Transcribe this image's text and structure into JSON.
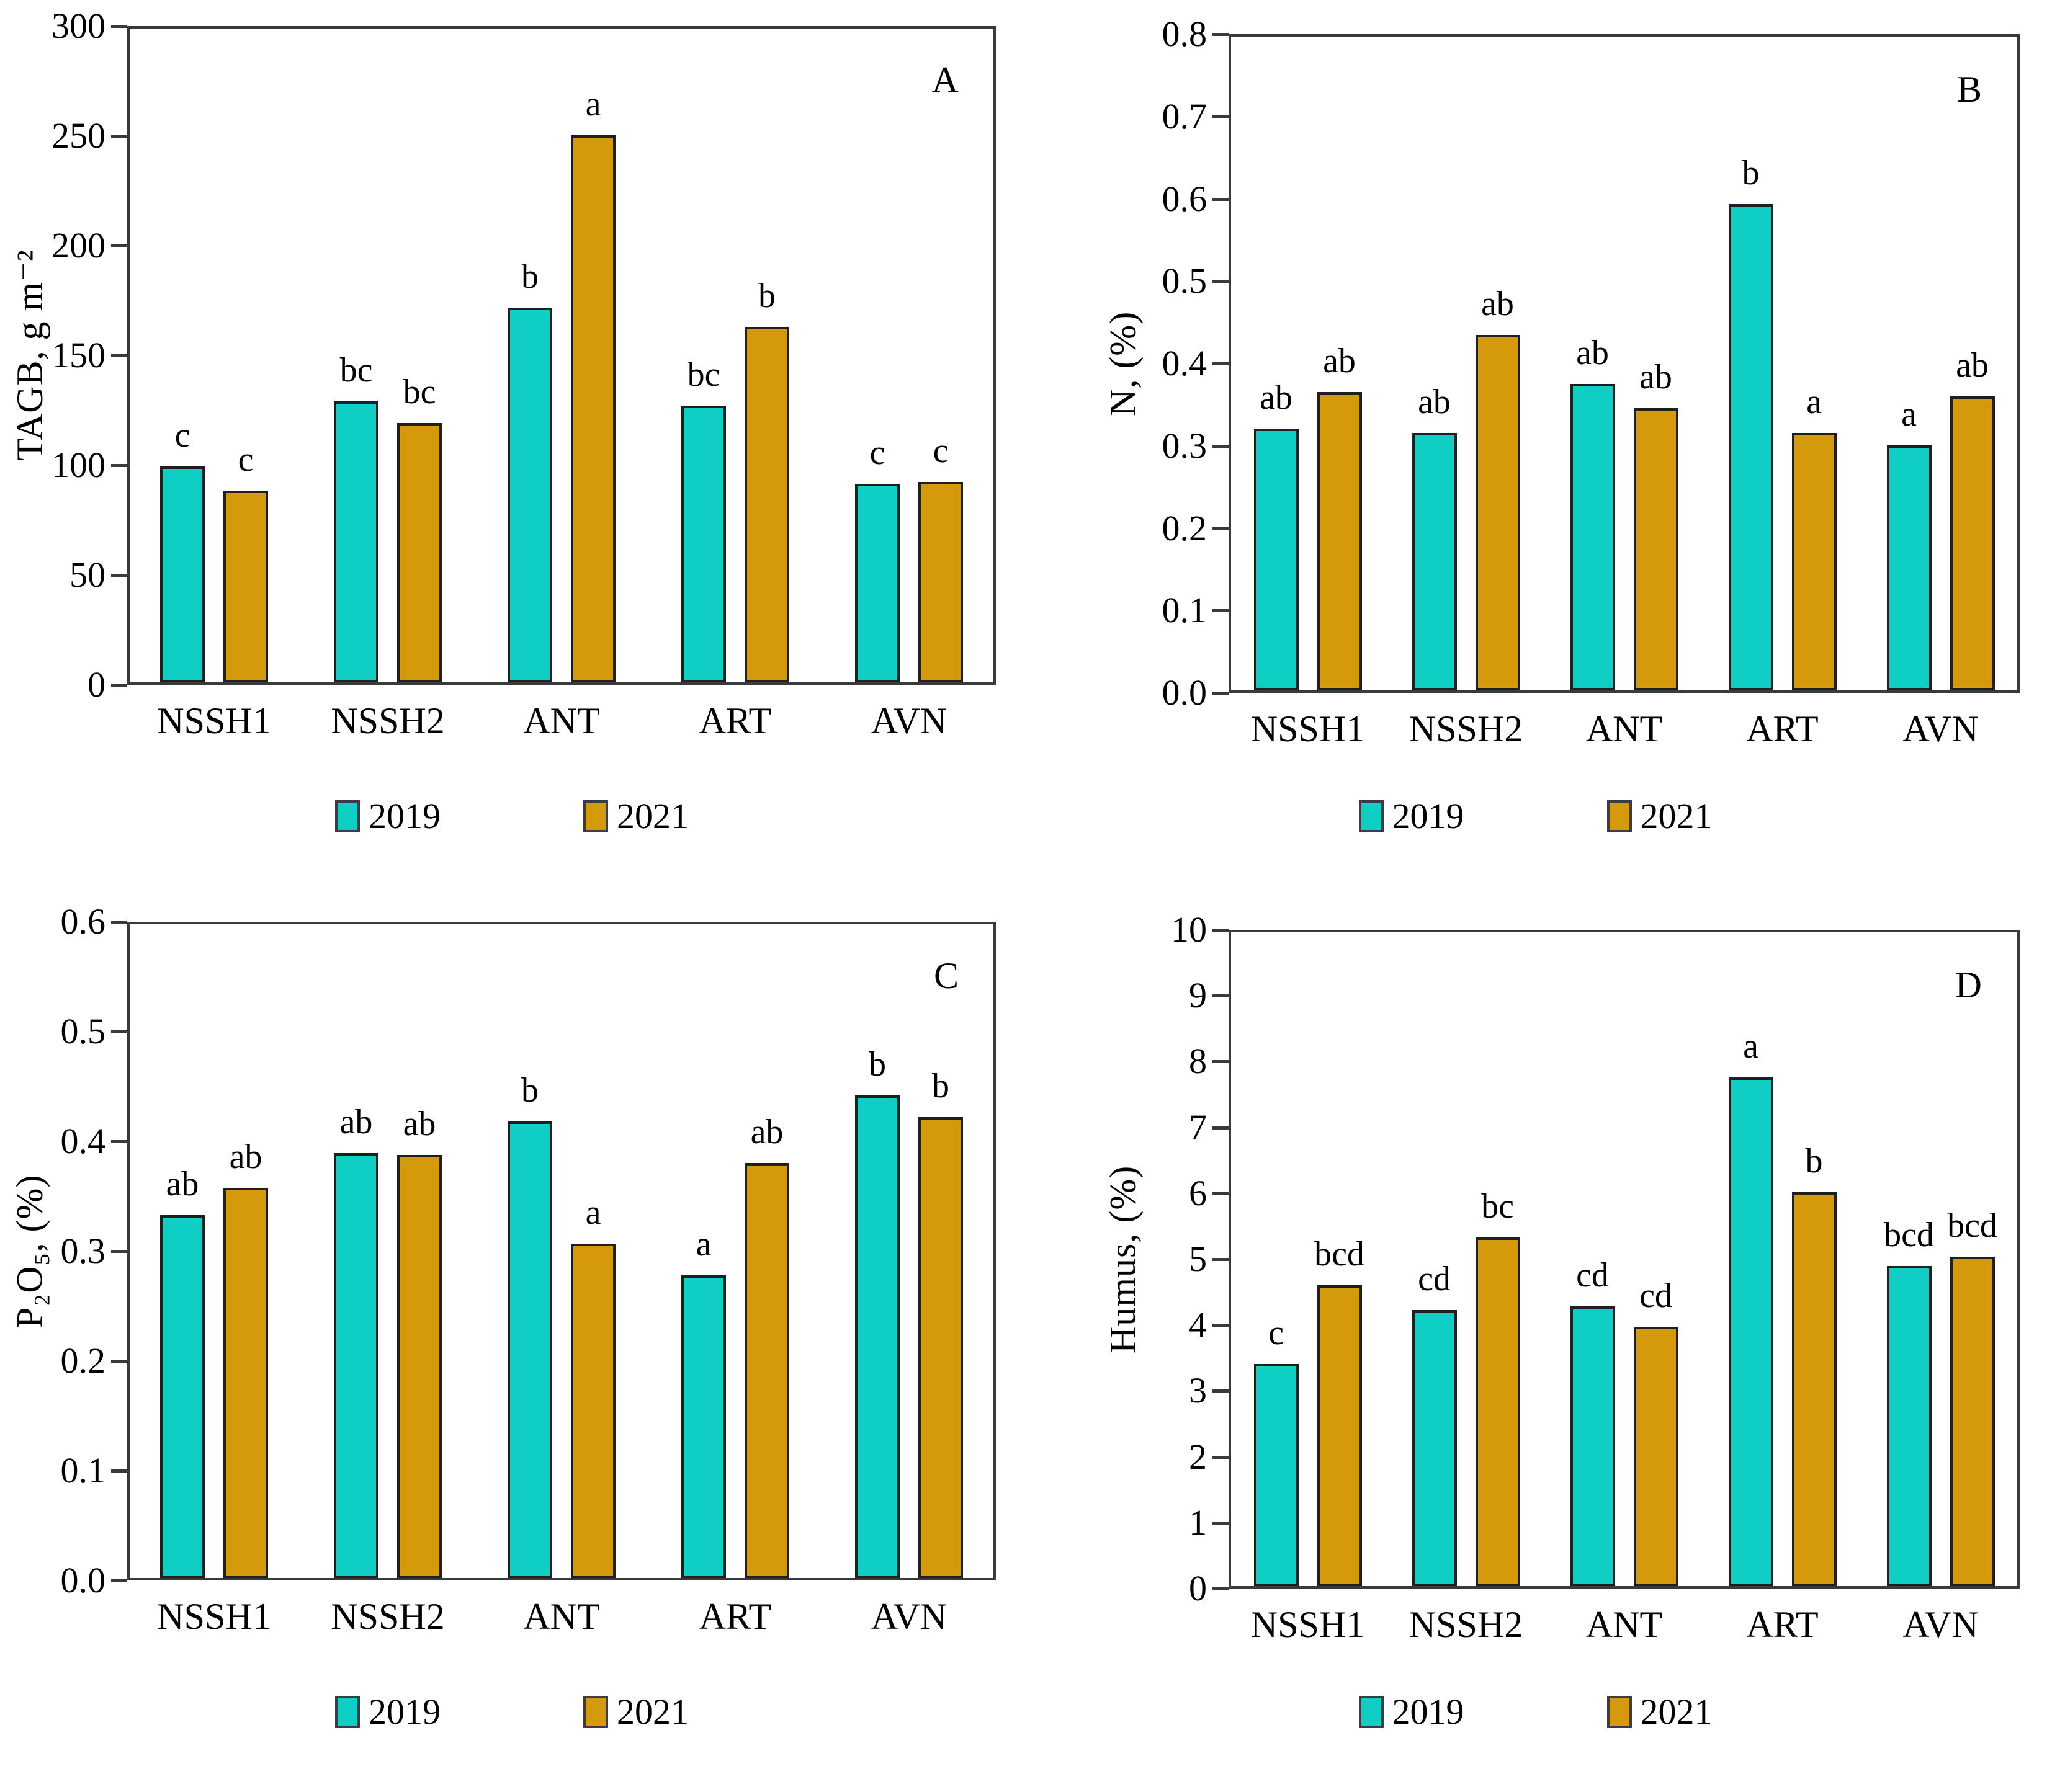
{
  "colors": {
    "series_2019": "#0fcec4",
    "series_2021": "#d49a0b",
    "bar_border": "#1f1f1f",
    "axis": "#3a3a3a",
    "text": "#000000",
    "background": "#ffffff"
  },
  "chart_data": [
    {
      "type": "bar",
      "panel_label": "A",
      "ylabel": "TAGB, g m⁻²",
      "xlabel": "",
      "ylim": [
        0,
        300
      ],
      "ytick_labels": [
        "0",
        "50",
        "100",
        "150",
        "200",
        "250",
        "300"
      ],
      "grid": false,
      "legend_position": "bottom",
      "categories": [
        "NSSH1",
        "NSSH2",
        "ANT",
        "ART",
        "AVN"
      ],
      "series": [
        {
          "name": "2019",
          "color": "#0fcec4",
          "values": [
            99,
            129,
            172,
            127,
            91
          ],
          "letters": [
            "c",
            "bc",
            "b",
            "bc",
            "c"
          ]
        },
        {
          "name": "2021",
          "color": "#d49a0b",
          "values": [
            88,
            119,
            251,
            163,
            92
          ],
          "letters": [
            "c",
            "bc",
            "a",
            "b",
            "c"
          ]
        }
      ]
    },
    {
      "type": "bar",
      "panel_label": "B",
      "ylabel": "N,  (%)",
      "xlabel": "",
      "ylim": [
        0,
        0.8
      ],
      "ytick_labels": [
        "0.0",
        "0.1",
        "0.2",
        "0.3",
        "0.4",
        "0.5",
        "0.6",
        "0.7",
        "0.8"
      ],
      "grid": false,
      "legend_position": "bottom",
      "categories": [
        "NSSH1",
        "NSSH2",
        "ANT",
        "ART",
        "AVN"
      ],
      "series": [
        {
          "name": "2019",
          "color": "#0fcec4",
          "values": [
            0.32,
            0.315,
            0.375,
            0.595,
            0.3
          ],
          "letters": [
            "ab",
            "ab",
            "ab",
            "b",
            "a"
          ]
        },
        {
          "name": "2021",
          "color": "#d49a0b",
          "values": [
            0.365,
            0.435,
            0.345,
            0.315,
            0.36
          ],
          "letters": [
            "ab",
            "ab",
            "ab",
            "a",
            "ab"
          ]
        }
      ]
    },
    {
      "type": "bar",
      "panel_label": "C",
      "ylabel": "P₂O₅,  (%)",
      "xlabel": "",
      "ylim": [
        0,
        0.6
      ],
      "ytick_labels": [
        "0.0",
        "0.1",
        "0.2",
        "0.3",
        "0.4",
        "0.5",
        "0.6"
      ],
      "grid": false,
      "legend_position": "bottom",
      "categories": [
        "NSSH1",
        "NSSH2",
        "ANT",
        "ART",
        "AVN"
      ],
      "series": [
        {
          "name": "2019",
          "color": "#0fcec4",
          "values": [
            0.333,
            0.39,
            0.419,
            0.278,
            0.443
          ],
          "letters": [
            "ab",
            "ab",
            "b",
            "a",
            "b"
          ]
        },
        {
          "name": "2021",
          "color": "#d49a0b",
          "values": [
            0.358,
            0.388,
            0.307,
            0.381,
            0.423
          ],
          "letters": [
            "ab",
            "ab",
            "a",
            "ab",
            "b"
          ]
        }
      ]
    },
    {
      "type": "bar",
      "panel_label": "D",
      "ylabel": "Humus,  (%)",
      "xlabel": "",
      "ylim": [
        0,
        10
      ],
      "ytick_labels": [
        "0",
        "1",
        "2",
        "3",
        "4",
        "5",
        "6",
        "7",
        "8",
        "9",
        "10"
      ],
      "grid": false,
      "legend_position": "bottom",
      "categories": [
        "NSSH1",
        "NSSH2",
        "ANT",
        "ART",
        "AVN"
      ],
      "series": [
        {
          "name": "2019",
          "color": "#0fcec4",
          "values": [
            3.4,
            4.22,
            4.28,
            7.78,
            4.9
          ],
          "letters": [
            "c",
            "cd",
            "cd",
            "a",
            "bcd"
          ]
        },
        {
          "name": "2021",
          "color": "#d49a0b",
          "values": [
            4.6,
            5.33,
            3.97,
            6.02,
            5.04
          ],
          "letters": [
            "bcd",
            "bc",
            "cd",
            "b",
            "bcd"
          ]
        }
      ]
    }
  ]
}
